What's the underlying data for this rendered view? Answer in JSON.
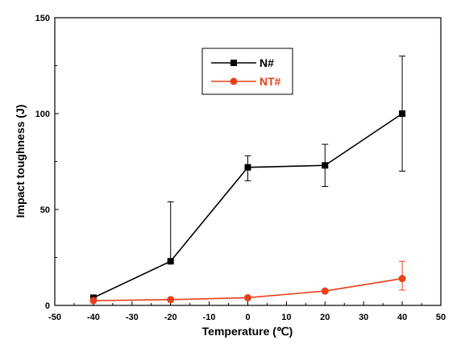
{
  "chart_data": {
    "type": "line",
    "xlabel": "Temperature (℃)",
    "ylabel": "Impact toughness (J)",
    "xlim": [
      -50,
      50
    ],
    "ylim": [
      0,
      150
    ],
    "x_ticks": [
      "-50",
      "-40",
      "-30",
      "-20",
      "-10",
      "0",
      "10",
      "20",
      "30",
      "40",
      "50"
    ],
    "y_ticks": [
      "0",
      "50",
      "100",
      "150"
    ],
    "grid": false,
    "legend_position": "top-center",
    "series": [
      {
        "name": "N#",
        "color": "#000000",
        "marker": "square",
        "x": [
          -40,
          -20,
          0,
          20,
          40
        ],
        "y": [
          4,
          23,
          72,
          73,
          100
        ],
        "err_low": [
          0,
          0,
          7,
          11,
          30
        ],
        "err_high": [
          0,
          31,
          6,
          11,
          30
        ]
      },
      {
        "name": "NT#",
        "color": "#e8401c",
        "marker": "circle",
        "x": [
          -40,
          -20,
          0,
          20,
          40
        ],
        "y": [
          2.5,
          3,
          4,
          7.5,
          14
        ],
        "err_low": [
          0,
          0,
          0,
          0,
          6
        ],
        "err_high": [
          0,
          0,
          0,
          0,
          9
        ]
      }
    ]
  }
}
